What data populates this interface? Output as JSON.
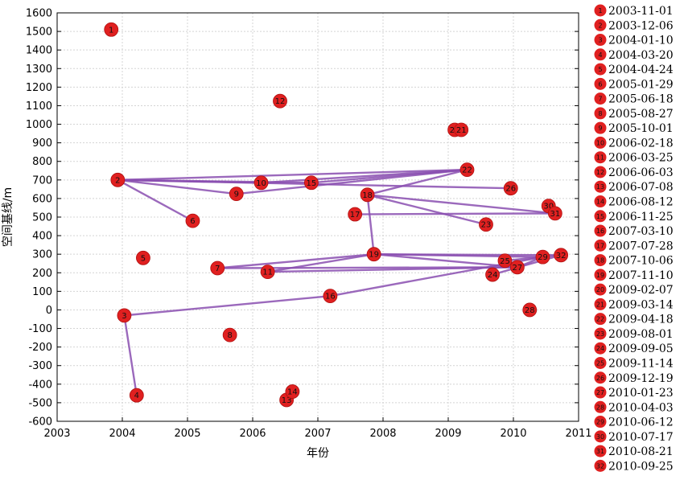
{
  "chart_data": {
    "type": "scatter",
    "title": "",
    "xlabel": "年份",
    "ylabel": "空间基线/m",
    "xlim": [
      2003,
      2011
    ],
    "ylim": [
      -600,
      1600
    ],
    "x_ticks": [
      "2003",
      "2004",
      "2005",
      "2006",
      "2007",
      "2008",
      "2009",
      "2010",
      "2011"
    ],
    "y_ticks": [
      "-600",
      "-500",
      "-400",
      "-300",
      "-200",
      "-100",
      "0",
      "100",
      "200",
      "300",
      "400",
      "500",
      "600",
      "700",
      "800",
      "900",
      "1000",
      "1100",
      "1200",
      "1300",
      "1400",
      "1500",
      "1600"
    ],
    "grid": true,
    "legend_position": "right",
    "marker_color": "#e02020",
    "edge_color": "#8a4fb0",
    "points": [
      {
        "id": "1",
        "date": "2003-11-01",
        "x": 2003.83,
        "y": 1510
      },
      {
        "id": "2",
        "date": "2003-12-06",
        "x": 2003.93,
        "y": 700
      },
      {
        "id": "3",
        "date": "2004-01-10",
        "x": 2004.03,
        "y": -30
      },
      {
        "id": "4",
        "date": "2004-03-20",
        "x": 2004.22,
        "y": -460
      },
      {
        "id": "5",
        "date": "2004-04-24",
        "x": 2004.32,
        "y": 280
      },
      {
        "id": "6",
        "date": "2005-01-29",
        "x": 2005.08,
        "y": 480
      },
      {
        "id": "7",
        "date": "2005-06-18",
        "x": 2005.46,
        "y": 225
      },
      {
        "id": "8",
        "date": "2005-08-27",
        "x": 2005.65,
        "y": -135
      },
      {
        "id": "9",
        "date": "2005-10-01",
        "x": 2005.75,
        "y": 625
      },
      {
        "id": "10",
        "date": "2006-02-18",
        "x": 2006.13,
        "y": 685
      },
      {
        "id": "11",
        "date": "2006-03-25",
        "x": 2006.23,
        "y": 205
      },
      {
        "id": "12",
        "date": "2006-06-03",
        "x": 2006.42,
        "y": 1125
      },
      {
        "id": "13",
        "date": "2006-07-08",
        "x": 2006.52,
        "y": -485
      },
      {
        "id": "14",
        "date": "2006-08-12",
        "x": 2006.61,
        "y": -440
      },
      {
        "id": "15",
        "date": "2006-11-25",
        "x": 2006.9,
        "y": 685
      },
      {
        "id": "16",
        "date": "2007-03-10",
        "x": 2007.19,
        "y": 75
      },
      {
        "id": "17",
        "date": "2007-07-28",
        "x": 2007.57,
        "y": 515
      },
      {
        "id": "18",
        "date": "2007-10-06",
        "x": 2007.76,
        "y": 620
      },
      {
        "id": "19",
        "date": "2007-11-10",
        "x": 2007.86,
        "y": 300
      },
      {
        "id": "20",
        "date": "2009-02-07",
        "x": 2009.1,
        "y": 970
      },
      {
        "id": "21",
        "date": "2009-03-14",
        "x": 2009.2,
        "y": 970
      },
      {
        "id": "22",
        "date": "2009-04-18",
        "x": 2009.29,
        "y": 755
      },
      {
        "id": "23",
        "date": "2009-08-01",
        "x": 2009.58,
        "y": 460
      },
      {
        "id": "24",
        "date": "2009-09-05",
        "x": 2009.68,
        "y": 190
      },
      {
        "id": "25",
        "date": "2009-11-14",
        "x": 2009.87,
        "y": 265
      },
      {
        "id": "26",
        "date": "2009-12-19",
        "x": 2009.96,
        "y": 655
      },
      {
        "id": "27",
        "date": "2010-01-23",
        "x": 2010.06,
        "y": 230
      },
      {
        "id": "28",
        "date": "2010-04-03",
        "x": 2010.25,
        "y": 0
      },
      {
        "id": "29",
        "date": "2010-06-12",
        "x": 2010.45,
        "y": 285
      },
      {
        "id": "30",
        "date": "2010-07-17",
        "x": 2010.54,
        "y": 560
      },
      {
        "id": "31",
        "date": "2010-08-21",
        "x": 2010.64,
        "y": 520
      },
      {
        "id": "32",
        "date": "2010-09-25",
        "x": 2010.73,
        "y": 295
      }
    ],
    "edges": [
      [
        "2",
        "22"
      ],
      [
        "2",
        "26"
      ],
      [
        "2",
        "15"
      ],
      [
        "2",
        "9"
      ],
      [
        "2",
        "6"
      ],
      [
        "2",
        "10"
      ],
      [
        "10",
        "22"
      ],
      [
        "9",
        "22"
      ],
      [
        "15",
        "22"
      ],
      [
        "22",
        "18"
      ],
      [
        "18",
        "31"
      ],
      [
        "18",
        "23"
      ],
      [
        "18",
        "19"
      ],
      [
        "17",
        "31"
      ],
      [
        "19",
        "32"
      ],
      [
        "19",
        "27"
      ],
      [
        "19",
        "29"
      ],
      [
        "19",
        "11"
      ],
      [
        "7",
        "19"
      ],
      [
        "7",
        "27"
      ],
      [
        "11",
        "27"
      ],
      [
        "25",
        "32"
      ],
      [
        "24",
        "32"
      ],
      [
        "27",
        "29"
      ],
      [
        "3",
        "16"
      ],
      [
        "16",
        "29"
      ],
      [
        "3",
        "4"
      ]
    ]
  }
}
